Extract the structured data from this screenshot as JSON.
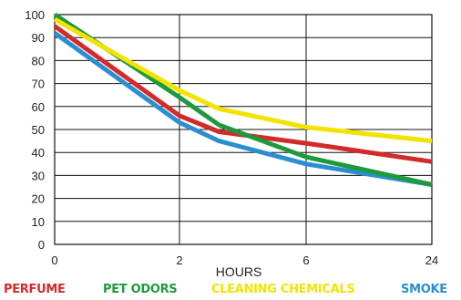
{
  "chart_data": {
    "type": "line",
    "x": [
      "0",
      "2",
      "6",
      "24"
    ],
    "xlabel": "HOURS",
    "ylabel": "",
    "title": "",
    "ylim": [
      0,
      100
    ],
    "yticks": [
      "0",
      "10",
      "20",
      "30",
      "40",
      "50",
      "60",
      "70",
      "80",
      "90",
      "100"
    ],
    "grid": true,
    "legend_position": "bottom",
    "series": [
      {
        "name": "PERFUME",
        "color": "#d42a2a",
        "points": [
          [
            0,
            95
          ],
          [
            2,
            56
          ],
          [
            3.25,
            49
          ],
          [
            6,
            44
          ],
          [
            24,
            36
          ]
        ]
      },
      {
        "name": "PET ODORS",
        "color": "#1e9a3c",
        "points": [
          [
            0,
            100
          ],
          [
            2,
            64
          ],
          [
            3.25,
            52
          ],
          [
            6,
            38
          ],
          [
            24,
            26
          ]
        ]
      },
      {
        "name": "CLEANING CHEMICALS",
        "color": "#f2e300",
        "points": [
          [
            0,
            98
          ],
          [
            2,
            67
          ],
          [
            3.25,
            59
          ],
          [
            6,
            51
          ],
          [
            24,
            45
          ]
        ]
      },
      {
        "name": "SMOKE",
        "color": "#2a8fd0",
        "points": [
          [
            0,
            92
          ],
          [
            2,
            53
          ],
          [
            3.25,
            45
          ],
          [
            6,
            35
          ],
          [
            24,
            26
          ]
        ]
      }
    ]
  }
}
